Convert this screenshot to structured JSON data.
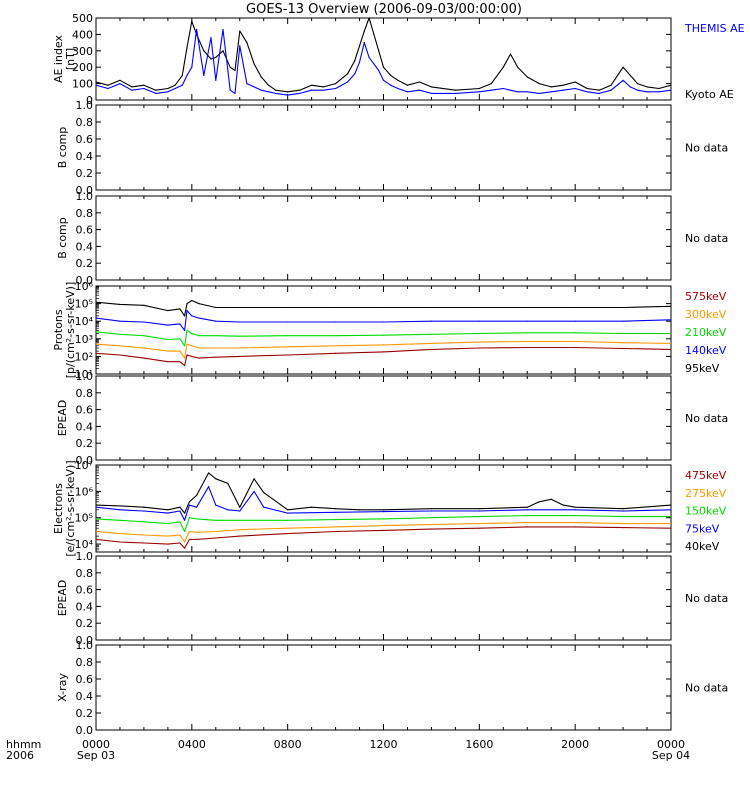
{
  "title": "GOES-13 Overview (2006-09-03/00:00:00)",
  "corner_labels": {
    "line1": "hhmm",
    "line2": "2006"
  },
  "x_axis": {
    "range_hours": [
      0,
      24
    ],
    "ticks": [
      {
        "hour": 0,
        "label": "0000",
        "sublabel": "Sep 03"
      },
      {
        "hour": 4,
        "label": "0400",
        "sublabel": ""
      },
      {
        "hour": 8,
        "label": "0800",
        "sublabel": ""
      },
      {
        "hour": 12,
        "label": "1200",
        "sublabel": ""
      },
      {
        "hour": 16,
        "label": "1600",
        "sublabel": ""
      },
      {
        "hour": 20,
        "label": "2000",
        "sublabel": ""
      },
      {
        "hour": 24,
        "label": "0000",
        "sublabel": "Sep 04"
      }
    ]
  },
  "chart_data": [
    {
      "type": "line",
      "id": "ae",
      "ylabel_lines": [
        "AE index",
        "[nT]"
      ],
      "ylim": [
        0,
        500
      ],
      "yscale": "linear",
      "yticks": [
        0,
        100,
        200,
        300,
        400,
        500
      ],
      "ytick_labels": [
        "0",
        "100",
        "200",
        "300",
        "400",
        "500"
      ],
      "series": [
        {
          "name": "Kyoto AE",
          "color": "#000000",
          "x": [
            0,
            0.5,
            1,
            1.5,
            2,
            2.5,
            3,
            3.3,
            3.6,
            3.8,
            4.0,
            4.2,
            4.5,
            4.8,
            5.0,
            5.3,
            5.6,
            5.8,
            6.0,
            6.3,
            6.6,
            6.9,
            7.2,
            7.5,
            8,
            8.5,
            9,
            9.5,
            10,
            10.5,
            10.8,
            11.0,
            11.2,
            11.4,
            11.6,
            11.8,
            12.0,
            12.3,
            12.6,
            13.0,
            13.5,
            14,
            15,
            16,
            16.5,
            17.0,
            17.3,
            17.6,
            18,
            18.5,
            19,
            19.5,
            20,
            20.5,
            21,
            21.5,
            22,
            22.3,
            22.6,
            23,
            23.5,
            24
          ],
          "y": [
            110,
            90,
            120,
            80,
            90,
            60,
            70,
            90,
            150,
            320,
            480,
            400,
            300,
            250,
            260,
            300,
            200,
            180,
            420,
            350,
            220,
            140,
            90,
            60,
            50,
            60,
            90,
            80,
            100,
            160,
            240,
            330,
            420,
            500,
            400,
            300,
            200,
            150,
            120,
            90,
            110,
            80,
            60,
            70,
            100,
            200,
            280,
            200,
            140,
            100,
            80,
            90,
            110,
            70,
            60,
            90,
            200,
            150,
            100,
            80,
            70,
            90
          ]
        },
        {
          "name": "THEMIS AE",
          "color": "#0000ff",
          "x": [
            0,
            0.5,
            1,
            1.5,
            2,
            2.5,
            3,
            3.3,
            3.6,
            3.8,
            4.0,
            4.2,
            4.5,
            4.8,
            5.0,
            5.3,
            5.6,
            5.8,
            6.0,
            6.3,
            6.6,
            6.9,
            7.2,
            7.5,
            8,
            8.5,
            9,
            9.5,
            10,
            10.5,
            10.8,
            11.0,
            11.2,
            11.4,
            11.6,
            11.8,
            12.0,
            12.3,
            12.6,
            13.0,
            13.5,
            14,
            15,
            16,
            16.5,
            17.0,
            17.3,
            17.6,
            18,
            18.5,
            19,
            19.5,
            20,
            20.5,
            21,
            21.5,
            22,
            22.3,
            22.6,
            23,
            23.5,
            24
          ],
          "y": [
            90,
            70,
            100,
            60,
            70,
            40,
            50,
            70,
            90,
            150,
            200,
            430,
            150,
            380,
            120,
            430,
            60,
            40,
            330,
            100,
            80,
            60,
            50,
            40,
            30,
            40,
            60,
            60,
            70,
            110,
            160,
            230,
            350,
            260,
            220,
            180,
            120,
            90,
            70,
            50,
            60,
            40,
            40,
            50,
            60,
            70,
            60,
            50,
            50,
            40,
            50,
            60,
            70,
            50,
            40,
            60,
            120,
            80,
            60,
            50,
            50,
            60
          ]
        }
      ]
    },
    {
      "type": "line",
      "id": "bcomp1",
      "ylabel_lines": [
        "B comp"
      ],
      "ylim": [
        0,
        1
      ],
      "yscale": "linear",
      "yticks": [
        0,
        0.2,
        0.4,
        0.6,
        0.8,
        1.0
      ],
      "ytick_labels": [
        "0.0",
        "0.2",
        "0.4",
        "0.6",
        "0.8",
        "1.0"
      ],
      "note": "No data",
      "series": []
    },
    {
      "type": "line",
      "id": "bcomp2",
      "ylabel_lines": [
        "B comp"
      ],
      "ylim": [
        0,
        1
      ],
      "yscale": "linear",
      "yticks": [
        0,
        0.2,
        0.4,
        0.6,
        0.8,
        1.0
      ],
      "ytick_labels": [
        "0.0",
        "0.2",
        "0.4",
        "0.6",
        "0.8",
        "1.0"
      ],
      "note": "No data",
      "series": []
    },
    {
      "type": "line",
      "id": "protons",
      "ylabel_lines": [
        "Protons",
        "[p/(cm²-s-sr-keV)]"
      ],
      "ylim": [
        10,
        1000000
      ],
      "yscale": "log",
      "yticks": [
        10,
        100,
        1000,
        10000,
        100000,
        1000000
      ],
      "ytick_labels": [
        "10¹",
        "10²",
        "10³",
        "10⁴",
        "10⁵",
        "10⁶"
      ],
      "series": [
        {
          "name": "95keV",
          "color": "#000000",
          "x": [
            0,
            1,
            2,
            3,
            3.5,
            3.7,
            3.8,
            4.0,
            4.3,
            5,
            6,
            8,
            10,
            12,
            14,
            16,
            18,
            20,
            22,
            24
          ],
          "y": [
            120000,
            90000,
            80000,
            40000,
            50000,
            20000,
            100000,
            150000,
            100000,
            60000,
            60000,
            60000,
            60000,
            60000,
            60000,
            60000,
            60000,
            60000,
            60000,
            70000
          ]
        },
        {
          "name": "140keV",
          "color": "#0000ff",
          "x": [
            0,
            1,
            2,
            3,
            3.5,
            3.7,
            3.8,
            4.0,
            4.3,
            5,
            6,
            8,
            10,
            12,
            14,
            16,
            18,
            20,
            22,
            24
          ],
          "y": [
            15000,
            10000,
            9000,
            6000,
            7000,
            3000,
            40000,
            20000,
            15000,
            10000,
            9000,
            9000,
            9000,
            9000,
            10000,
            10000,
            10000,
            10000,
            10000,
            12000
          ]
        },
        {
          "name": "210keV",
          "color": "#00dd00",
          "x": [
            0,
            1,
            2,
            3,
            3.5,
            3.7,
            3.8,
            4.0,
            4.3,
            5,
            6,
            8,
            10,
            12,
            14,
            16,
            18,
            20,
            22,
            24
          ],
          "y": [
            2500,
            1800,
            1500,
            900,
            1000,
            400,
            3000,
            2000,
            1500,
            1500,
            1400,
            1500,
            1500,
            1600,
            1800,
            2000,
            2200,
            2200,
            2000,
            2000
          ]
        },
        {
          "name": "300keV",
          "color": "#ff9900",
          "x": [
            0,
            1,
            2,
            3,
            3.5,
            3.7,
            3.8,
            4.0,
            4.3,
            5,
            6,
            8,
            10,
            12,
            14,
            16,
            18,
            20,
            22,
            24
          ],
          "y": [
            500,
            400,
            300,
            200,
            200,
            80,
            500,
            400,
            300,
            300,
            300,
            350,
            400,
            450,
            550,
            650,
            700,
            700,
            600,
            550
          ]
        },
        {
          "name": "575keV",
          "color": "#990000",
          "x": [
            0,
            1,
            2,
            3,
            3.5,
            3.7,
            3.8,
            4.0,
            4.3,
            5,
            6,
            8,
            10,
            12,
            14,
            16,
            18,
            20,
            22,
            24
          ],
          "y": [
            150,
            120,
            80,
            50,
            50,
            30,
            120,
            100,
            80,
            90,
            100,
            120,
            150,
            180,
            250,
            300,
            320,
            320,
            280,
            250
          ]
        }
      ]
    },
    {
      "type": "line",
      "id": "epead1",
      "ylabel_lines": [
        "EPEAD"
      ],
      "ylim": [
        0,
        1
      ],
      "yscale": "linear",
      "yticks": [
        0,
        0.2,
        0.4,
        0.6,
        0.8,
        1.0
      ],
      "ytick_labels": [
        "0.0",
        "0.2",
        "0.4",
        "0.6",
        "0.8",
        "1.0"
      ],
      "note": "No data",
      "series": []
    },
    {
      "type": "line",
      "id": "electrons",
      "ylabel_lines": [
        "Electrons",
        "[e/(cm²-s-sr-keV)]"
      ],
      "ylim": [
        5000,
        10000000
      ],
      "yscale": "log",
      "yticks": [
        10000,
        100000,
        1000000,
        10000000
      ],
      "ytick_labels": [
        "10⁴",
        "10⁵",
        "10⁶",
        "10⁷"
      ],
      "series": [
        {
          "name": "40keV",
          "color": "#000000",
          "x": [
            0,
            1,
            2,
            3,
            3.5,
            3.7,
            3.9,
            4.2,
            4.7,
            5.0,
            5.5,
            6.0,
            6.6,
            7.0,
            8,
            9,
            10,
            11,
            12,
            14,
            16,
            18,
            18.5,
            19,
            19.5,
            20,
            22,
            24
          ],
          "y": [
            300000,
            280000,
            250000,
            200000,
            250000,
            150000,
            400000,
            700000,
            5000000,
            3000000,
            2000000,
            250000,
            3000000,
            900000,
            200000,
            250000,
            220000,
            200000,
            200000,
            220000,
            220000,
            250000,
            400000,
            500000,
            300000,
            250000,
            220000,
            300000
          ]
        },
        {
          "name": "75keV",
          "color": "#0000ff",
          "x": [
            0,
            1,
            2,
            3,
            3.5,
            3.7,
            3.9,
            4.2,
            4.7,
            5.0,
            5.5,
            6.0,
            6.6,
            7.0,
            8,
            10,
            12,
            14,
            16,
            18,
            20,
            22,
            24
          ],
          "y": [
            250000,
            200000,
            180000,
            150000,
            180000,
            80000,
            300000,
            250000,
            1500000,
            300000,
            200000,
            180000,
            1000000,
            250000,
            150000,
            160000,
            170000,
            180000,
            180000,
            200000,
            200000,
            180000,
            200000
          ]
        },
        {
          "name": "150keV",
          "color": "#00dd00",
          "x": [
            0,
            1,
            2,
            3,
            3.5,
            3.7,
            3.9,
            4.2,
            5,
            6,
            8,
            10,
            12,
            14,
            16,
            18,
            20,
            22,
            24
          ],
          "y": [
            90000,
            80000,
            70000,
            60000,
            70000,
            30000,
            100000,
            90000,
            80000,
            80000,
            80000,
            85000,
            90000,
            100000,
            110000,
            120000,
            120000,
            110000,
            110000
          ]
        },
        {
          "name": "275keV",
          "color": "#ff9900",
          "x": [
            0,
            1,
            2,
            3,
            3.5,
            3.7,
            3.9,
            4.2,
            5,
            6,
            8,
            10,
            12,
            14,
            16,
            18,
            20,
            22,
            24
          ],
          "y": [
            30000,
            25000,
            22000,
            20000,
            22000,
            12000,
            30000,
            28000,
            30000,
            35000,
            40000,
            45000,
            50000,
            55000,
            60000,
            65000,
            65000,
            60000,
            60000
          ]
        },
        {
          "name": "475keV",
          "color": "#990000",
          "x": [
            0,
            1,
            2,
            3,
            3.5,
            3.7,
            3.9,
            4.2,
            5,
            6,
            8,
            10,
            12,
            14,
            16,
            18,
            20,
            22,
            24
          ],
          "y": [
            15000,
            12000,
            11000,
            10000,
            11000,
            7000,
            15000,
            15000,
            17000,
            20000,
            25000,
            30000,
            33000,
            37000,
            40000,
            45000,
            45000,
            42000,
            40000
          ]
        }
      ]
    },
    {
      "type": "line",
      "id": "epead2",
      "ylabel_lines": [
        "EPEAD"
      ],
      "ylim": [
        0,
        1
      ],
      "yscale": "linear",
      "yticks": [
        0,
        0.2,
        0.4,
        0.6,
        0.8,
        1.0
      ],
      "ytick_labels": [
        "0.0",
        "0.2",
        "0.4",
        "0.6",
        "0.8",
        "1.0"
      ],
      "note": "No data",
      "series": []
    },
    {
      "type": "line",
      "id": "xray",
      "ylabel_lines": [
        "X-ray"
      ],
      "ylim": [
        0,
        1
      ],
      "yscale": "linear",
      "yticks": [
        0,
        0.2,
        0.4,
        0.6,
        0.8,
        1.0
      ],
      "ytick_labels": [
        "0.0",
        "0.2",
        "0.4",
        "0.6",
        "0.8",
        "1.0"
      ],
      "note": "No data",
      "series": []
    }
  ]
}
